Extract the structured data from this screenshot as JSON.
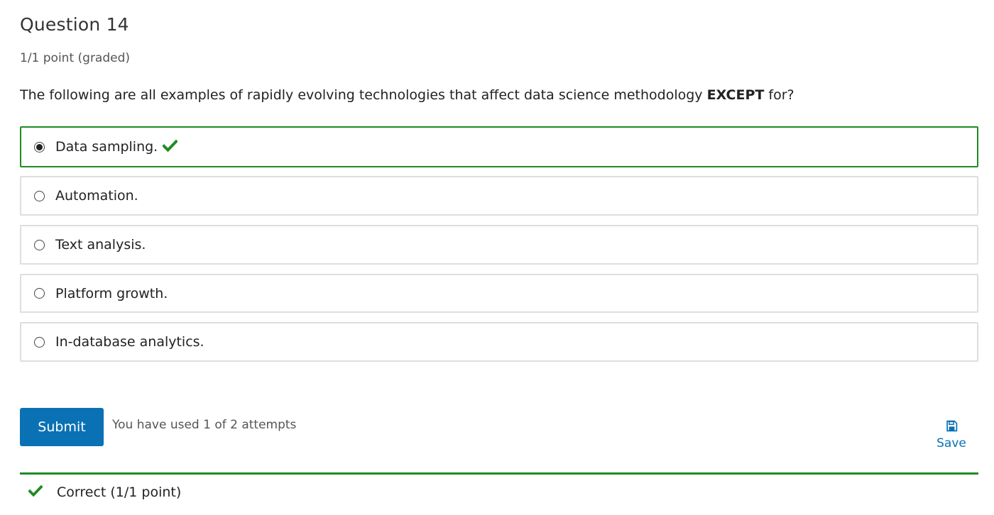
{
  "question": {
    "title": "Question 14",
    "points": "1/1 point (graded)",
    "prompt_start": "The following are all examples of rapidly evolving technologies that affect data science methodology ",
    "prompt_emphasis": "EXCEPT",
    "prompt_end": " for?"
  },
  "choices": [
    {
      "label": "Data sampling.",
      "checked": true,
      "correct": true
    },
    {
      "label": "Automation.",
      "checked": false
    },
    {
      "label": "Text analysis.",
      "checked": false
    },
    {
      "label": "Platform growth.",
      "checked": false
    },
    {
      "label": "In-database analytics.",
      "checked": false
    }
  ],
  "actions": {
    "submit_label": "Submit",
    "attempts_text": "You have used 1 of 2 attempts",
    "save_label": "Save"
  },
  "feedback": {
    "text": "Correct (1/1 point)"
  },
  "colors": {
    "correct": "#1f8b24",
    "primary": "#0b71b5",
    "border": "#dedede"
  },
  "icons": {
    "check": "checkmark-icon",
    "save": "floppy-disk-icon"
  }
}
